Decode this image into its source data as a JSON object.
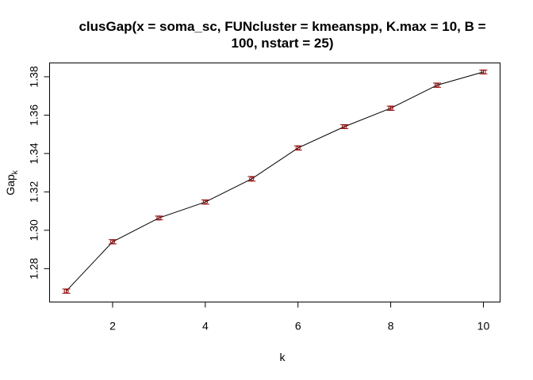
{
  "chart_data": {
    "type": "line",
    "title": "clusGap(x = soma_sc, FUNcluster = kmeanspp, K.max = 10, B =",
    "title_line2": "100, nstart = 25)",
    "xlabel": "k",
    "ylabel": "Gap",
    "ylabel_subscript": "k",
    "xlim": [
      0.64,
      10.36
    ],
    "ylim": [
      1.2626,
      1.3872
    ],
    "xticks": [
      2,
      4,
      6,
      8,
      10
    ],
    "yticks": [
      1.28,
      1.3,
      1.32,
      1.34,
      1.36,
      1.38
    ],
    "ytick_labels": [
      "1.28",
      "1.30",
      "1.32",
      "1.34",
      "1.36",
      "1.38"
    ],
    "x": [
      1,
      2,
      3,
      4,
      5,
      6,
      7,
      8,
      9,
      10
    ],
    "values": [
      1.2683,
      1.294,
      1.3064,
      1.3147,
      1.3268,
      1.3429,
      1.354,
      1.3636,
      1.3756,
      1.3825
    ],
    "errors": [
      0.0011,
      0.0011,
      0.001,
      0.0011,
      0.0012,
      0.0011,
      0.001,
      0.0011,
      0.0011,
      0.001
    ],
    "line_color": "#000000",
    "point_color": "#8b0000",
    "errorbar_color": "#8b0000",
    "grid": false
  }
}
